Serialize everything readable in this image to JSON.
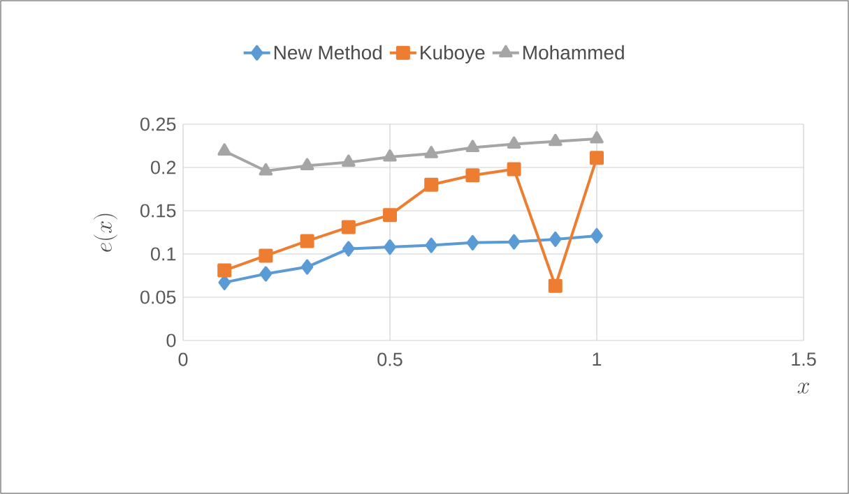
{
  "chart_data": {
    "type": "line",
    "xlabel": "x",
    "ylabel": "e(x)",
    "x": [
      0.1,
      0.2,
      0.3,
      0.4,
      0.5,
      0.6,
      0.7,
      0.8,
      0.9,
      1.0
    ],
    "series": [
      {
        "name": "New Method",
        "color": "#5b9bd5",
        "marker": "diamond",
        "values": [
          0.067,
          0.077,
          0.085,
          0.106,
          0.108,
          0.11,
          0.113,
          0.114,
          0.117,
          0.121
        ]
      },
      {
        "name": "Kuboye",
        "color": "#ed7d31",
        "marker": "square",
        "values": [
          0.081,
          0.098,
          0.115,
          0.131,
          0.145,
          0.18,
          0.191,
          0.198,
          0.063,
          0.211
        ]
      },
      {
        "name": "Mohammed",
        "color": "#a5a5a5",
        "marker": "triangle",
        "values": [
          0.219,
          0.196,
          0.202,
          0.206,
          0.212,
          0.216,
          0.223,
          0.227,
          0.23,
          0.233
        ]
      }
    ],
    "xlim": [
      0,
      1.5
    ],
    "xticks": [
      0,
      0.5,
      1,
      1.5
    ],
    "ylim": [
      0,
      0.25
    ],
    "yticks": [
      0,
      0.05,
      0.1,
      0.15,
      0.2,
      0.25
    ],
    "grid": true,
    "legend": "top",
    "line_style": "solid"
  }
}
